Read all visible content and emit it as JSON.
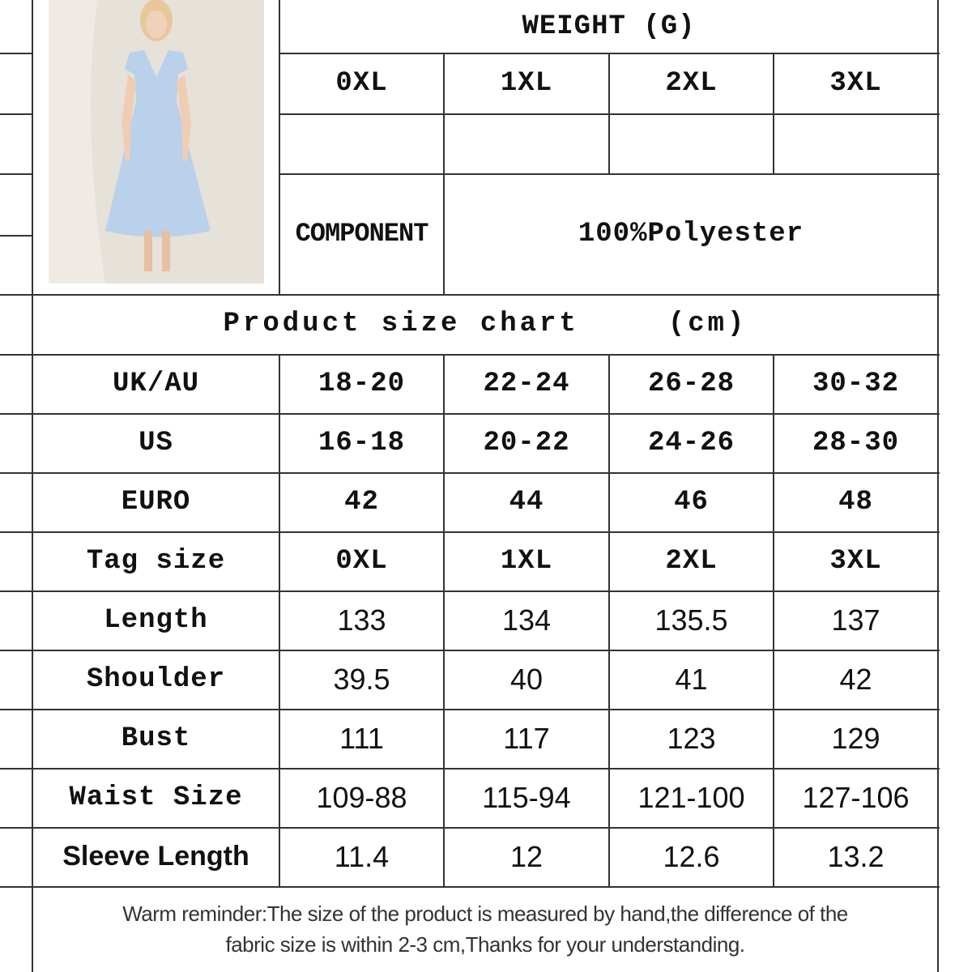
{
  "header": {
    "weight_title": "WEIGHT (G)",
    "sizes": [
      "0XL",
      "1XL",
      "2XL",
      "3XL"
    ],
    "weights": [
      "",
      "",
      "",
      ""
    ],
    "component_label": "COMPONENT",
    "component_value": "100%Polyester"
  },
  "product_image": {
    "description_icon": "dress-photo",
    "dress_color": "#b9d1ea"
  },
  "size_chart": {
    "title": "Product size chart",
    "unit": "(cm)",
    "rows": [
      {
        "label": "UK/AU",
        "values": [
          "18-20",
          "22-24",
          "26-28",
          "30-32"
        ],
        "style": "mono"
      },
      {
        "label": "US",
        "values": [
          "16-18",
          "20-22",
          "24-26",
          "28-30"
        ],
        "style": "mono"
      },
      {
        "label": "EURO",
        "values": [
          "42",
          "44",
          "46",
          "48"
        ],
        "style": "mono"
      },
      {
        "label": "Tag size",
        "values": [
          "0XL",
          "1XL",
          "2XL",
          "3XL"
        ],
        "style": "mono"
      },
      {
        "label": "Length",
        "values": [
          "133",
          "134",
          "135.5",
          "137"
        ],
        "style": "sans"
      },
      {
        "label": "Shoulder",
        "values": [
          "39.5",
          "40",
          "41",
          "42"
        ],
        "style": "sans"
      },
      {
        "label": "Bust",
        "values": [
          "111",
          "117",
          "123",
          "129"
        ],
        "style": "sans"
      },
      {
        "label": "Waist Size",
        "values": [
          "109-88",
          "115-94",
          "121-100",
          "127-106"
        ],
        "style": "sans"
      },
      {
        "label": "Sleeve Length",
        "values": [
          "11.4",
          "12",
          "12.6",
          "13.2"
        ],
        "style": "sansb"
      }
    ]
  },
  "footer": {
    "reminder_line1": "Warm reminder:The size of the product is measured by hand,the difference of the",
    "reminder_line2": "fabric size is within 2-3 cm,Thanks for your understanding."
  }
}
